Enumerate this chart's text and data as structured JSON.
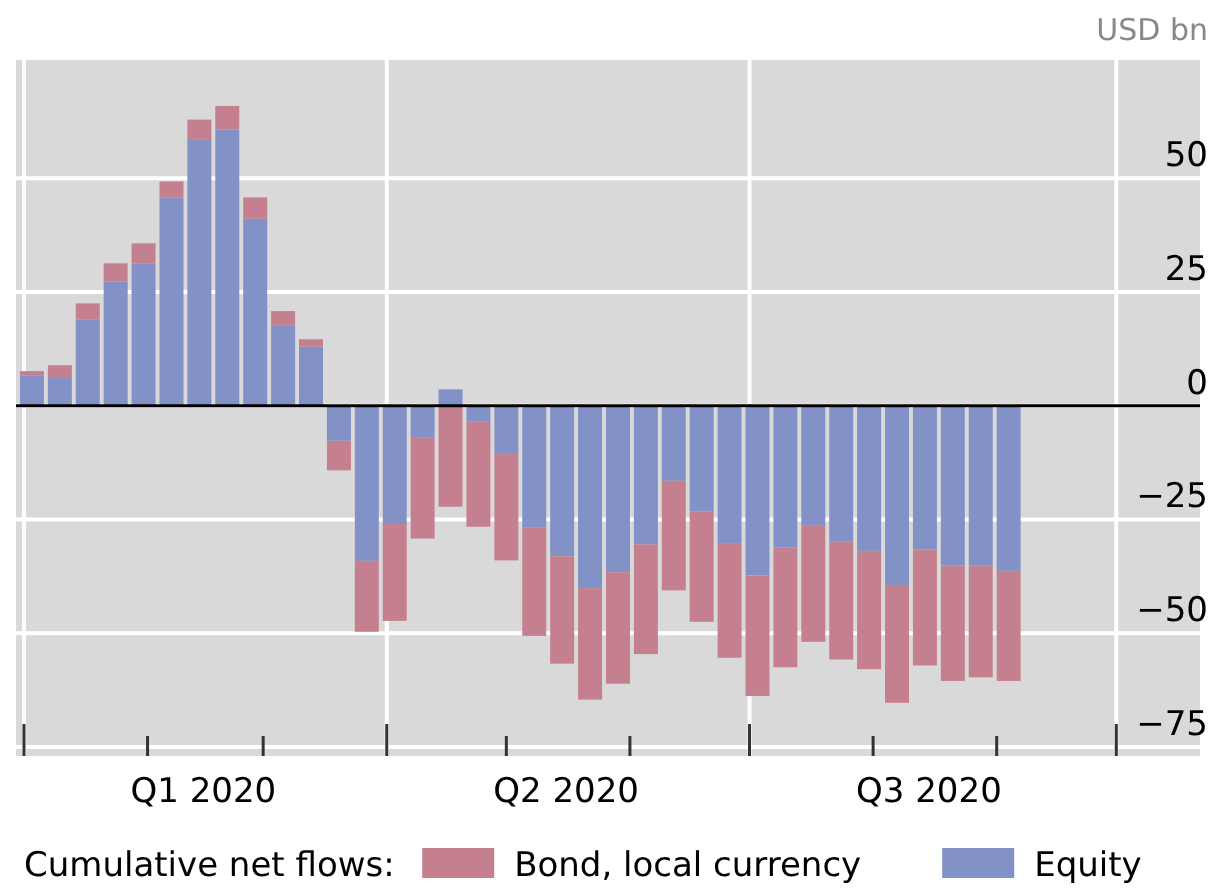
{
  "chart_data": {
    "type": "bar",
    "stacked": true,
    "ylabel": "USD bn",
    "legend_title": "Cumulative net flows:",
    "legend": "bottom",
    "grid": true,
    "x": [
      "2020-01-03",
      "2020-01-10",
      "2020-01-17",
      "2020-01-24",
      "2020-01-31",
      "2020-02-07",
      "2020-02-14",
      "2020-02-21",
      "2020-02-28",
      "2020-03-06",
      "2020-03-13",
      "2020-03-20",
      "2020-03-27",
      "2020-04-03",
      "2020-04-10",
      "2020-04-17",
      "2020-04-24",
      "2020-05-01",
      "2020-05-08",
      "2020-05-15",
      "2020-05-22",
      "2020-05-29",
      "2020-06-05",
      "2020-06-12",
      "2020-06-19",
      "2020-06-26",
      "2020-07-03",
      "2020-07-10",
      "2020-07-17",
      "2020-07-24",
      "2020-07-31",
      "2020-08-07",
      "2020-08-14",
      "2020-08-21",
      "2020-08-28",
      "2020-09-04"
    ],
    "xlim": [
      "2019-12-30",
      "2020-10-22"
    ],
    "xticks": [
      {
        "value": "2020-01-01",
        "label": null
      },
      {
        "value": "2020-02-01",
        "label": null
      },
      {
        "value": "2020-02-15",
        "label": "Q1 2020"
      },
      {
        "value": "2020-03-01",
        "label": null
      },
      {
        "value": "2020-04-01",
        "label": null
      },
      {
        "value": "2020-05-01",
        "label": null
      },
      {
        "value": "2020-05-16",
        "label": "Q2 2020"
      },
      {
        "value": "2020-06-01",
        "label": null
      },
      {
        "value": "2020-07-01",
        "label": null
      },
      {
        "value": "2020-08-01",
        "label": null
      },
      {
        "value": "2020-08-15",
        "label": "Q3 2020"
      },
      {
        "value": "2020-09-01",
        "label": null
      },
      {
        "value": "2020-10-01",
        "label": null
      }
    ],
    "ylim": [
      -77,
      76
    ],
    "yticks": [
      {
        "value": -75,
        "label": "−75"
      },
      {
        "value": -50,
        "label": "−50"
      },
      {
        "value": -25,
        "label": "−25"
      },
      0,
      25,
      50
    ],
    "ref_lines": [
      {
        "axis": "y",
        "value": 0,
        "color": "#000000"
      }
    ],
    "series": [
      {
        "name": "Equity",
        "color": "#8291c6",
        "values": [
          6.7,
          6.1,
          19.0,
          27.3,
          31.3,
          45.8,
          58.6,
          60.7,
          41.1,
          17.7,
          13.0,
          -7.7,
          -34.1,
          -26.0,
          -6.9,
          3.6,
          -3.4,
          -10.4,
          -26.7,
          -33.1,
          -40.1,
          -36.6,
          -30.5,
          -16.5,
          -23.2,
          -30.2,
          -37.3,
          -31.2,
          -26.4,
          -29.9,
          -31.9,
          -39.4,
          -31.6,
          -35.1,
          -35.1,
          -36.3
        ]
      },
      {
        "name": "Bond, local currency",
        "color": "#c4808f",
        "values": [
          0.9,
          2.8,
          3.5,
          4.0,
          4.4,
          3.5,
          4.3,
          5.2,
          4.7,
          3.1,
          1.6,
          -6.5,
          -15.6,
          -21.3,
          -22.3,
          -22.2,
          -23.2,
          -23.6,
          -23.9,
          -23.6,
          -24.5,
          -24.5,
          -24.1,
          -24.1,
          -24.3,
          -25.2,
          -26.5,
          -26.3,
          -25.5,
          -25.9,
          -26.0,
          -25.9,
          -25.5,
          -25.4,
          -24.6,
          -24.2
        ]
      }
    ]
  }
}
